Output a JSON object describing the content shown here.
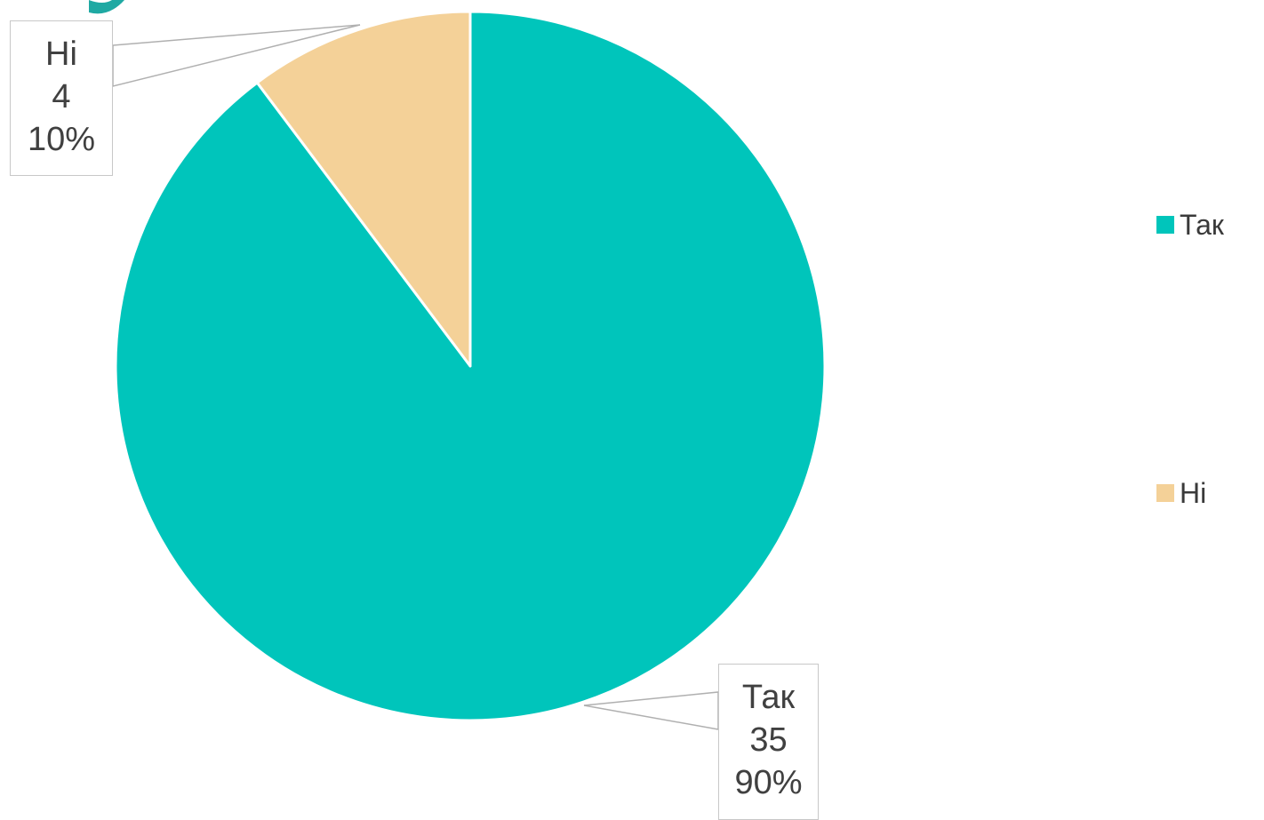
{
  "chart_data": {
    "type": "pie",
    "categories": [
      "Так",
      "Ні"
    ],
    "values": [
      35,
      4
    ],
    "percent_labels": [
      "90%",
      "10%"
    ],
    "value_labels": [
      "35",
      "4"
    ],
    "colors": [
      "#00C5BB",
      "#F4D198"
    ],
    "legend_position": "right",
    "legend": [
      "Так",
      "Ні"
    ]
  }
}
